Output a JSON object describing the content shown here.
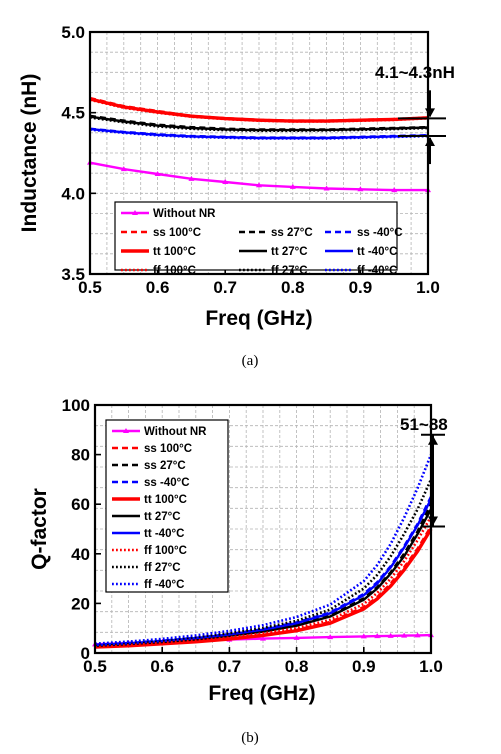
{
  "chart_data": [
    {
      "type": "line",
      "caption": "(a)",
      "xlabel": "Freq (GHz)",
      "ylabel": "Inductance (nH)",
      "xlim": [
        0.5,
        1.0
      ],
      "ylim": [
        3.5,
        5.0
      ],
      "xticks": [
        "0.5",
        "0.6",
        "0.7",
        "0.8",
        "0.9",
        "1.0"
      ],
      "yticks": [
        "3.5",
        "4.0",
        "4.5",
        "5.0"
      ],
      "grid": true,
      "legend_position": "bottom-center",
      "annotation": "4.1~4.3nH",
      "x": [
        0.5,
        0.55,
        0.6,
        0.65,
        0.7,
        0.75,
        0.8,
        0.85,
        0.9,
        0.95,
        1.0
      ],
      "series": [
        {
          "name": "Without NR",
          "color": "#ff00ff",
          "style": "solid-marker",
          "values": [
            4.19,
            4.15,
            4.12,
            4.09,
            4.07,
            4.05,
            4.04,
            4.03,
            4.025,
            4.02,
            4.02
          ]
        },
        {
          "name": "ss 100°C",
          "color": "#ff0000",
          "style": "dashed",
          "values": [
            4.59,
            4.54,
            4.51,
            4.48,
            4.465,
            4.455,
            4.45,
            4.45,
            4.455,
            4.46,
            4.47
          ]
        },
        {
          "name": "ss 27°C",
          "color": "#000000",
          "style": "dashed",
          "values": [
            4.48,
            4.45,
            4.425,
            4.41,
            4.4,
            4.395,
            4.395,
            4.395,
            4.4,
            4.405,
            4.41
          ]
        },
        {
          "name": "ss -40°C",
          "color": "#0000ff",
          "style": "dashed",
          "values": [
            4.4,
            4.38,
            4.365,
            4.355,
            4.35,
            4.345,
            4.345,
            4.345,
            4.35,
            4.355,
            4.36
          ]
        },
        {
          "name": "tt 100°C",
          "color": "#ff0000",
          "style": "solid-thick",
          "values": [
            4.585,
            4.535,
            4.505,
            4.478,
            4.463,
            4.453,
            4.448,
            4.448,
            4.453,
            4.458,
            4.468
          ]
        },
        {
          "name": "tt 27°C",
          "color": "#000000",
          "style": "solid",
          "values": [
            4.475,
            4.445,
            4.42,
            4.405,
            4.396,
            4.392,
            4.392,
            4.393,
            4.397,
            4.402,
            4.408
          ]
        },
        {
          "name": "tt -40°C",
          "color": "#0000ff",
          "style": "solid",
          "values": [
            4.398,
            4.378,
            4.363,
            4.353,
            4.348,
            4.343,
            4.343,
            4.343,
            4.348,
            4.353,
            4.358
          ]
        },
        {
          "name": "ff 100°C",
          "color": "#ff0000",
          "style": "dotted",
          "values": [
            4.58,
            4.53,
            4.5,
            4.475,
            4.46,
            4.45,
            4.445,
            4.445,
            4.45,
            4.455,
            4.465
          ]
        },
        {
          "name": "ff 27°C",
          "color": "#000000",
          "style": "dotted",
          "values": [
            4.47,
            4.44,
            4.415,
            4.4,
            4.392,
            4.388,
            4.388,
            4.39,
            4.393,
            4.398,
            4.405
          ]
        },
        {
          "name": "ff -40°C",
          "color": "#0000ff",
          "style": "dotted",
          "values": [
            4.395,
            4.375,
            4.36,
            4.35,
            4.345,
            4.34,
            4.34,
            4.34,
            4.345,
            4.35,
            4.355
          ]
        }
      ]
    },
    {
      "type": "line",
      "caption": "(b)",
      "xlabel": "Freq (GHz)",
      "ylabel": "Q-factor",
      "xlim": [
        0.5,
        1.0
      ],
      "ylim": [
        0,
        100
      ],
      "xticks": [
        "0.5",
        "0.6",
        "0.7",
        "0.8",
        "0.9",
        "1.0"
      ],
      "yticks": [
        "0",
        "20",
        "40",
        "60",
        "80",
        "100"
      ],
      "grid": true,
      "legend_position": "top-left",
      "annotation": "51~88",
      "x": [
        0.5,
        0.55,
        0.6,
        0.65,
        0.7,
        0.75,
        0.8,
        0.85,
        0.9,
        0.92,
        0.94,
        0.96,
        0.98,
        1.0
      ],
      "series": [
        {
          "name": "Without NR",
          "color": "#ff00ff",
          "style": "solid-marker",
          "values": [
            3.5,
            4.0,
            4.5,
            5.0,
            5.4,
            5.8,
            6.1,
            6.4,
            6.7,
            6.8,
            6.9,
            7.0,
            7.1,
            7.2
          ]
        },
        {
          "name": "ss 100°C",
          "color": "#ff0000",
          "style": "dashed",
          "values": [
            2.5,
            3.0,
            3.8,
            4.6,
            5.8,
            7.3,
            9.3,
            12.5,
            18.5,
            22.5,
            28.0,
            34.5,
            42.0,
            51.0
          ]
        },
        {
          "name": "ss 27°C",
          "color": "#000000",
          "style": "dashed",
          "values": [
            3.0,
            3.7,
            4.5,
            5.6,
            7.0,
            8.8,
            11.2,
            15.0,
            22.0,
            26.5,
            32.5,
            40.0,
            49.0,
            60.0
          ]
        },
        {
          "name": "ss -40°C",
          "color": "#0000ff",
          "style": "dashed",
          "values": [
            3.3,
            4.0,
            4.9,
            6.1,
            7.6,
            9.6,
            12.3,
            16.3,
            23.8,
            28.5,
            35.0,
            43.0,
            52.0,
            63.0
          ]
        },
        {
          "name": "tt 100°C",
          "color": "#ff0000",
          "style": "solid-thick",
          "values": [
            2.4,
            2.9,
            3.7,
            4.5,
            5.6,
            7.1,
            9.0,
            12.0,
            17.8,
            21.8,
            27.0,
            33.5,
            41.0,
            50.0
          ]
        },
        {
          "name": "tt 27°C",
          "color": "#000000",
          "style": "solid",
          "values": [
            2.9,
            3.6,
            4.4,
            5.5,
            6.9,
            8.6,
            11.0,
            14.7,
            21.5,
            26.0,
            32.0,
            39.0,
            48.0,
            58.0
          ]
        },
        {
          "name": "tt -40°C",
          "color": "#0000ff",
          "style": "solid",
          "values": [
            3.2,
            3.9,
            4.8,
            6.0,
            7.5,
            9.4,
            12.0,
            16.0,
            23.3,
            28.0,
            34.5,
            42.5,
            51.5,
            62.0
          ]
        },
        {
          "name": "ff 100°C",
          "color": "#ff0000",
          "style": "dotted",
          "values": [
            2.7,
            3.3,
            4.1,
            5.0,
            6.3,
            7.9,
            10.0,
            13.4,
            19.8,
            24.2,
            30.0,
            37.0,
            45.5,
            55.0
          ]
        },
        {
          "name": "ff 27°C",
          "color": "#000000",
          "style": "dotted",
          "values": [
            3.4,
            4.2,
            5.1,
            6.4,
            8.0,
            10.1,
            13.0,
            17.5,
            26.0,
            31.5,
            39.0,
            48.0,
            58.0,
            70.0
          ]
        },
        {
          "name": "ff -40°C",
          "color": "#0000ff",
          "style": "dotted",
          "values": [
            3.8,
            4.6,
            5.7,
            7.1,
            8.9,
            11.2,
            14.5,
            19.5,
            29.0,
            35.5,
            44.0,
            54.5,
            66.5,
            80.0
          ]
        }
      ]
    }
  ]
}
